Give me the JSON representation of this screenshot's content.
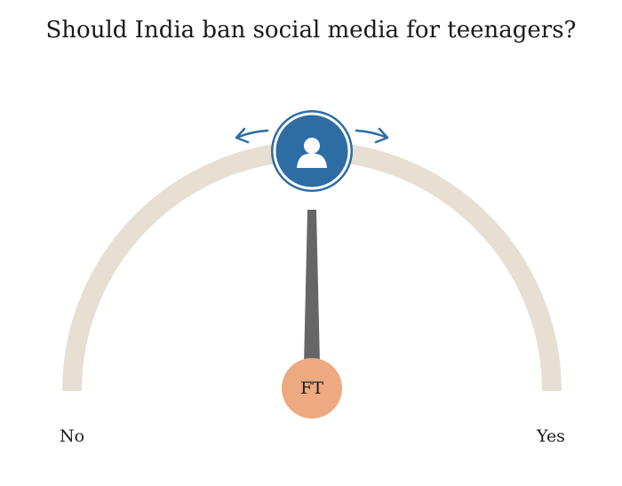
{
  "title": "Should India ban social media for teenagers?",
  "gauge": {
    "left_label": "No",
    "right_label": "Yes",
    "needle_label": "FT"
  }
}
